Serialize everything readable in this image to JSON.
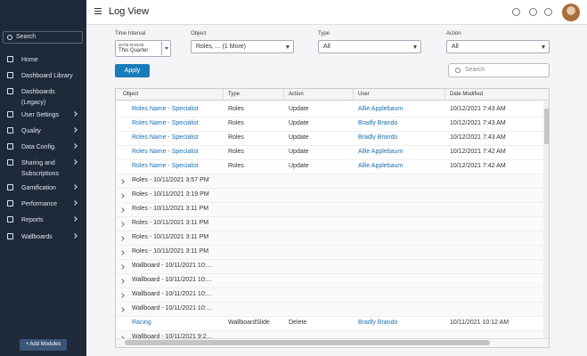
{
  "header": {
    "title": "Log View"
  },
  "sidebar": {
    "search": "Search",
    "menu": [
      {
        "label": "Home",
        "sub": false
      },
      {
        "label": "Dashboard Library",
        "sub": false
      },
      {
        "label": "Dashboards (Legacy)",
        "sub": false
      },
      {
        "label": "User Settings",
        "sub": true
      },
      {
        "label": "Quality",
        "sub": true
      },
      {
        "label": "Data Config.",
        "sub": true
      },
      {
        "label": "Sharing and Subscriptions",
        "sub": true
      },
      {
        "label": "Gamification",
        "sub": true
      },
      {
        "label": "Performance",
        "sub": true
      },
      {
        "label": "Reports",
        "sub": true
      },
      {
        "label": "Wallboards",
        "sub": true
      }
    ],
    "add_modules": "+ Add Modules"
  },
  "filters": [
    {
      "label": "Time Interval",
      "caption": "DATE RANGE",
      "value": "This Quarter"
    },
    {
      "label": "Object",
      "value": "Roles, ... (1 More)"
    },
    {
      "label": "Type",
      "value": "All"
    },
    {
      "label": "Action",
      "value": "All"
    }
  ],
  "apply": "Apply",
  "search": "Search",
  "table": {
    "columns": [
      "Object",
      "Type",
      "Action",
      "User",
      "Date Modified"
    ],
    "rows": [
      {
        "cells": [
          "Roles Name - Specialist",
          "Roles",
          "Update",
          "Allie Applebaum",
          "10/12/2021 7:43 AM"
        ]
      },
      {
        "cells": [
          "Roles Name - Specialist",
          "Roles",
          "Update",
          "Bradly Brando",
          "10/12/2021 7:43 AM"
        ]
      },
      {
        "cells": [
          "Roles Name - Specialist",
          "Roles",
          "Update",
          "Bradly Brando",
          "10/12/2021 7:43 AM"
        ]
      },
      {
        "cells": [
          "Roles Name - Specialist",
          "Roles",
          "Update",
          "Allie Applebaum",
          "10/12/2021 7:42 AM"
        ]
      },
      {
        "cells": [
          "Roles Name - Specialist",
          "Roles",
          "Update",
          "Allie Applebaum",
          "10/12/2021 7:42 AM"
        ]
      },
      {
        "group": "Roles - 10/11/2021 3:57 PM"
      },
      {
        "group": "Roles - 10/11/2021 3:19 PM"
      },
      {
        "group": "Roles - 10/11/2021 3:11 PM"
      },
      {
        "group": "Roles - 10/11/2021 3:11 PM"
      },
      {
        "group": "Roles - 10/11/2021 3:11 PM"
      },
      {
        "group": "Roles - 10/11/2021 3:11 PM"
      },
      {
        "group": "Wallboard - 10/11/2021 10:..."
      },
      {
        "group": "Wallboard - 10/11/2021 10:..."
      },
      {
        "group": "Wallboard - 10/11/2021 10:..."
      },
      {
        "group": "Wallboard - 10/11/2021 10:..."
      },
      {
        "cells": [
          "Racing",
          "WallboardSlide",
          "Delete",
          "Bradly Brando",
          "10/11/2021 10:12 AM"
        ]
      },
      {
        "group": "Wallboard - 10/11/2021 9:2..."
      }
    ]
  }
}
